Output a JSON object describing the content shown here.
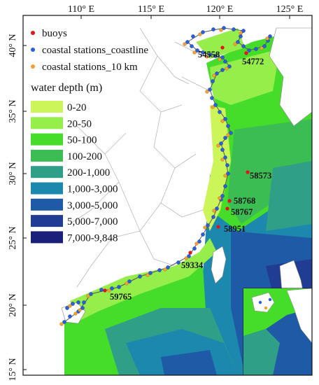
{
  "map": {
    "top_axis_labels": [
      "110° E",
      "115° E",
      "120° E",
      "125° E"
    ],
    "left_axis_labels": [
      "40° N",
      "35° N",
      "30° N",
      "25° N",
      "20° N",
      "15° N"
    ],
    "legend": {
      "items": [
        {
          "label": "buoys",
          "color": "#e0151b"
        },
        {
          "label": "coastal stations_coastline",
          "color": "#2a5fd8"
        },
        {
          "label": "coastal stations_10 km",
          "color": "#f0a135"
        }
      ]
    },
    "depth_legend": {
      "title": "water depth (m)",
      "classes": [
        {
          "label": "0-20",
          "color": "#ccf55a"
        },
        {
          "label": "20-50",
          "color": "#96ee4a"
        },
        {
          "label": "50-100",
          "color": "#45dc2a"
        },
        {
          "label": "100-200",
          "color": "#3bbd54"
        },
        {
          "label": "200-1,000",
          "color": "#2f9f88"
        },
        {
          "label": "1,000-3,000",
          "color": "#1d88ad"
        },
        {
          "label": "3,000-5,000",
          "color": "#1f5aa6"
        },
        {
          "label": "5,000-7,000",
          "color": "#203c93"
        },
        {
          "label": "7,000-9,848",
          "color": "#1a1f7a"
        }
      ]
    },
    "station_labels": [
      "54558",
      "54772",
      "58573",
      "58768",
      "58767",
      "58951",
      "59334",
      "59765"
    ]
  }
}
